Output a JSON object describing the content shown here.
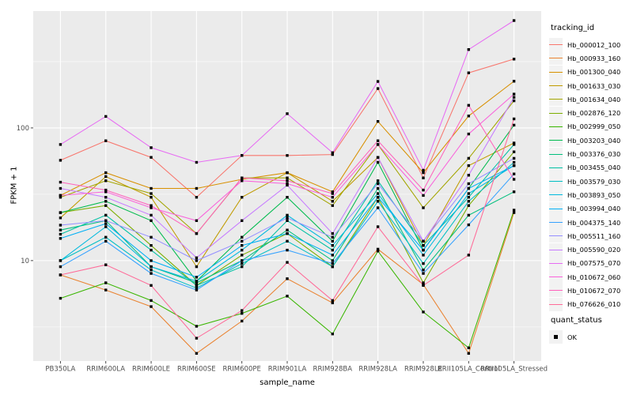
{
  "figure": {
    "background": "#FFFFFF",
    "panel_background": "#EBEBEB",
    "grid_color": "#FFFFFF",
    "point_color": "#000000",
    "tick_label_color": "#4D4D4D",
    "legend_key_background": "#F2F2F2"
  },
  "chart_data": {
    "type": "line",
    "title": "",
    "xlabel": "sample_name",
    "ylabel": "FPKM + 1",
    "y_scale": "log10",
    "ylim": [
      1.75,
      760
    ],
    "y_ticks": [
      10,
      100
    ],
    "y_minor_ticks": [
      3.162,
      31.62,
      316.2
    ],
    "grid": "on",
    "legend_position": "right",
    "categories": [
      "PB350LA",
      "RRIM600LA",
      "RRIM600LE",
      "RRIM600SE",
      "RRIM600PE",
      "RRIM901LA",
      "RRIM928BA",
      "RRIM928LA",
      "RRIM928LE",
      "RRII105LA_Control",
      "RRII105LA_Stressed"
    ],
    "series": [
      {
        "name": "Hb_000012_100",
        "color": "#F8766D",
        "values": [
          57,
          80,
          60,
          30,
          62,
          62,
          63,
          198,
          42,
          260,
          330
        ]
      },
      {
        "name": "Hb_000933_160",
        "color": "#EA8331",
        "values": [
          7.8,
          6,
          4.5,
          2,
          3.5,
          7.3,
          4.8,
          12.2,
          6.6,
          2,
          23
        ]
      },
      {
        "name": "Hb_001300_040",
        "color": "#D89000",
        "values": [
          31,
          46,
          35,
          35,
          41,
          46,
          33,
          112,
          46,
          123,
          225
        ]
      },
      {
        "name": "Hb_001633_030",
        "color": "#C09B00",
        "values": [
          21,
          43,
          30,
          9,
          30,
          46,
          28,
          60,
          13,
          52,
          77
        ]
      },
      {
        "name": "Hb_001634_040",
        "color": "#A3A500",
        "values": [
          30,
          40,
          32,
          16,
          42,
          42,
          26,
          75,
          25,
          59,
          160
        ]
      },
      {
        "name": "Hb_002876_120",
        "color": "#7CAE00",
        "values": [
          23,
          26,
          13,
          6.5,
          11,
          16,
          9,
          30,
          6.8,
          26,
          66
        ]
      },
      {
        "name": "Hb_002999_050",
        "color": "#39B600",
        "values": [
          5.2,
          6.8,
          5,
          3.2,
          4,
          5.4,
          2.8,
          11.8,
          4.1,
          2.2,
          24
        ]
      },
      {
        "name": "Hb_003203_040",
        "color": "#00BB4E",
        "values": [
          23,
          28,
          20,
          7,
          15,
          30,
          14,
          55,
          12,
          35,
          105
        ]
      },
      {
        "name": "Hb_003376_030",
        "color": "#00BF7D",
        "values": [
          17,
          20,
          9,
          6.8,
          10,
          17,
          10,
          35,
          8.5,
          22,
          33
        ]
      },
      {
        "name": "Hb_003455_040",
        "color": "#00C1A3",
        "values": [
          15.8,
          22,
          12,
          6.5,
          9,
          20,
          12,
          40,
          13,
          30,
          75
        ]
      },
      {
        "name": "Hb_003579_030",
        "color": "#00BFC4",
        "values": [
          10,
          15,
          8.5,
          6.2,
          9.5,
          14,
          9,
          28,
          9.5,
          28,
          55
        ]
      },
      {
        "name": "Hb_003893_050",
        "color": "#00BADE",
        "values": [
          10,
          18,
          9,
          7,
          12,
          22,
          13,
          32,
          11,
          32,
          52
        ]
      },
      {
        "name": "Hb_003994_040",
        "color": "#00B0F6",
        "values": [
          14.7,
          19,
          10,
          7.5,
          13,
          16,
          11,
          30,
          12,
          35,
          52
        ]
      },
      {
        "name": "Hb_004375_140",
        "color": "#35A2FF",
        "values": [
          9,
          14,
          8,
          6,
          10,
          12,
          9.5,
          25,
          8,
          18.6,
          45
        ]
      },
      {
        "name": "Hb_005511_160",
        "color": "#9590FF",
        "values": [
          18.5,
          20,
          15,
          10,
          14,
          21,
          15,
          38,
          14,
          38,
          59
        ]
      },
      {
        "name": "Hb_005590_020",
        "color": "#C77CFF",
        "values": [
          35,
          30,
          22,
          10.5,
          20,
          37,
          16,
          60,
          14,
          44,
          170
        ]
      },
      {
        "name": "Hb_007575_070",
        "color": "#E76BF3",
        "values": [
          75,
          122,
          71,
          55,
          62,
          128,
          65,
          224,
          48,
          390,
          645
        ]
      },
      {
        "name": "Hb_010672_060",
        "color": "#FA62DB",
        "values": [
          31,
          33,
          25,
          20,
          40,
          38,
          30,
          75,
          31,
          90,
          180
        ]
      },
      {
        "name": "Hb_010672_070",
        "color": "#FF62BC",
        "values": [
          39,
          34,
          26,
          16,
          42,
          40,
          32,
          80,
          34,
          148,
          41
        ]
      },
      {
        "name": "Hb_076626_010",
        "color": "#FF6A98",
        "values": [
          7.8,
          9.3,
          6.5,
          2.6,
          4.2,
          9.7,
          5,
          18,
          6.5,
          11,
          117
        ]
      }
    ],
    "legend": {
      "title": "tracking_id"
    },
    "legend2": {
      "title": "quant_status",
      "items": [
        {
          "label": "OK",
          "marker": "square",
          "color": "#000000"
        }
      ]
    }
  }
}
